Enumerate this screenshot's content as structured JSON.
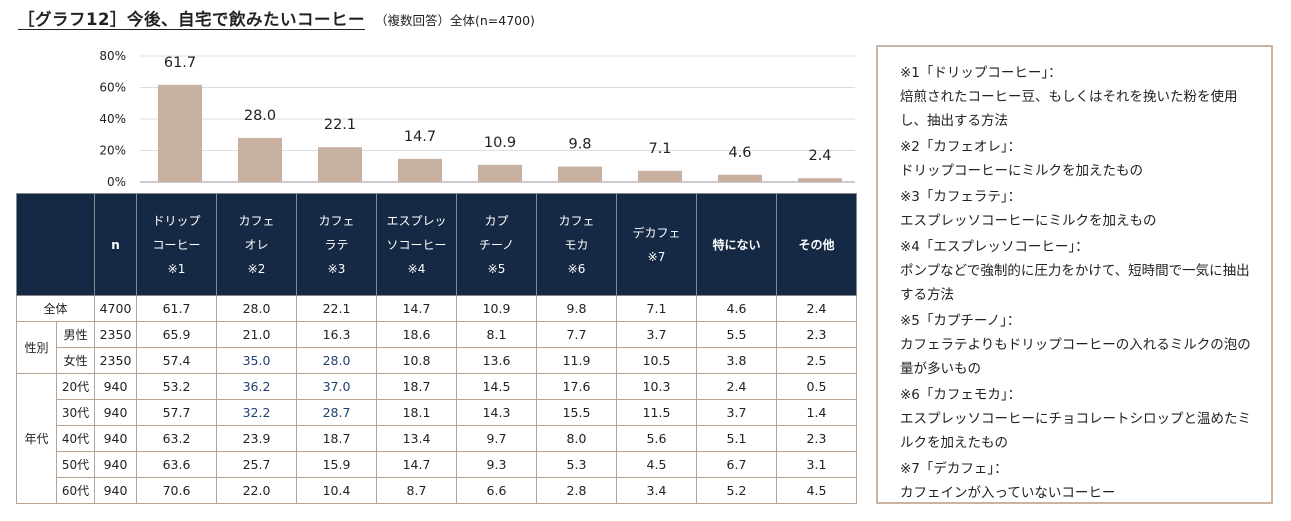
{
  "title": {
    "main": "［グラフ12］今後、自宅で飲みたいコーヒー",
    "sub": "（複数回答）全体(n=4700)"
  },
  "colors": {
    "bar": "#c9b1a2",
    "header_bg": "#152844",
    "border": "#b7a592",
    "highlight": "#1f3f73",
    "note_border": "#c9b4a3"
  },
  "chart_data": {
    "type": "bar",
    "categories": [
      "ドリップコーヒー",
      "カフェオレ",
      "カフェラテ",
      "エスプレッソコーヒー",
      "カプチーノ",
      "カフェモカ",
      "デカフェ",
      "特にない",
      "その他"
    ],
    "values": [
      61.7,
      28.0,
      22.1,
      14.7,
      10.9,
      9.8,
      7.1,
      4.6,
      2.4
    ],
    "value_labels": [
      "61.7",
      "28.0",
      "22.1",
      "14.7",
      "10.9",
      "9.8",
      "7.1",
      "4.6",
      "2.4"
    ],
    "ylim": [
      0,
      80
    ],
    "yticks": [
      "0%",
      "20%",
      "40%",
      "60%",
      "80%"
    ],
    "grid": true,
    "title": "",
    "xlabel": "",
    "ylabel": ""
  },
  "table": {
    "n_label": "n",
    "headers": [
      {
        "lines": [
          "ドリップ",
          "コーヒー",
          "※1"
        ],
        "bold": false
      },
      {
        "lines": [
          "カフェ",
          "オレ",
          "※2"
        ],
        "bold": false
      },
      {
        "lines": [
          "カフェ",
          "ラテ",
          "※3"
        ],
        "bold": false
      },
      {
        "lines": [
          "エスプレッ",
          "ソコーヒー",
          "※4"
        ],
        "bold": false
      },
      {
        "lines": [
          "カプ",
          "チーノ",
          "※5"
        ],
        "bold": false
      },
      {
        "lines": [
          "カフェ",
          "モカ",
          "※6"
        ],
        "bold": false
      },
      {
        "lines": [
          "デカフェ",
          "※7"
        ],
        "bold": false
      },
      {
        "lines": [
          "特にない"
        ],
        "bold": true
      },
      {
        "lines": [
          "その他"
        ],
        "bold": true
      }
    ],
    "total": {
      "label": "全体",
      "n": "4700",
      "values": [
        "61.7",
        "28.0",
        "22.1",
        "14.7",
        "10.9",
        "9.8",
        "7.1",
        "4.6",
        "2.4"
      ],
      "highlight": []
    },
    "groups": [
      {
        "label": "性別",
        "rows": [
          {
            "label": "男性",
            "n": "2350",
            "values": [
              "65.9",
              "21.0",
              "16.3",
              "18.6",
              "8.1",
              "7.7",
              "3.7",
              "5.5",
              "2.3"
            ],
            "highlight": []
          },
          {
            "label": "女性",
            "n": "2350",
            "values": [
              "57.4",
              "35.0",
              "28.0",
              "10.8",
              "13.6",
              "11.9",
              "10.5",
              "3.8",
              "2.5"
            ],
            "highlight": [
              1,
              2
            ]
          }
        ]
      },
      {
        "label": "年代",
        "rows": [
          {
            "label": "20代",
            "n": "940",
            "values": [
              "53.2",
              "36.2",
              "37.0",
              "18.7",
              "14.5",
              "17.6",
              "10.3",
              "2.4",
              "0.5"
            ],
            "highlight": [
              1,
              2
            ]
          },
          {
            "label": "30代",
            "n": "940",
            "values": [
              "57.7",
              "32.2",
              "28.7",
              "18.1",
              "14.3",
              "15.5",
              "11.5",
              "3.7",
              "1.4"
            ],
            "highlight": [
              1,
              2
            ]
          },
          {
            "label": "40代",
            "n": "940",
            "values": [
              "63.2",
              "23.9",
              "18.7",
              "13.4",
              "9.7",
              "8.0",
              "5.6",
              "5.1",
              "2.3"
            ],
            "highlight": []
          },
          {
            "label": "50代",
            "n": "940",
            "values": [
              "63.6",
              "25.7",
              "15.9",
              "14.7",
              "9.3",
              "5.3",
              "4.5",
              "6.7",
              "3.1"
            ],
            "highlight": []
          },
          {
            "label": "60代",
            "n": "940",
            "values": [
              "70.6",
              "22.0",
              "10.4",
              "8.7",
              "6.6",
              "2.8",
              "3.4",
              "5.2",
              "4.5"
            ],
            "highlight": []
          }
        ]
      }
    ]
  },
  "notes": [
    {
      "heading": "※1「ドリップコーヒー」：",
      "body": "焙煎されたコーヒー豆、もしくはそれを挽いた粉を使用し、抽出する方法"
    },
    {
      "heading": "※2「カフェオレ」：",
      "body": "ドリップコーヒーにミルクを加えたもの"
    },
    {
      "heading": "※3「カフェラテ」：",
      "body": "エスプレッソコーヒーにミルクを加えもの"
    },
    {
      "heading": "※4「エスプレッソコーヒー」：",
      "body": "ポンプなどで強制的に圧力をかけて、短時間で一気に抽出する方法"
    },
    {
      "heading": "※5「カプチーノ」：",
      "body": "カフェラテよりもドリップコーヒーの入れるミルクの泡の量が多いもの"
    },
    {
      "heading": "※6「カフェモカ」：",
      "body": "エスプレッソコーヒーにチョコレートシロップと温めたミルクを加えたもの"
    },
    {
      "heading": "※7「デカフェ」：",
      "body": "カフェインが入っていないコーヒー"
    }
  ]
}
